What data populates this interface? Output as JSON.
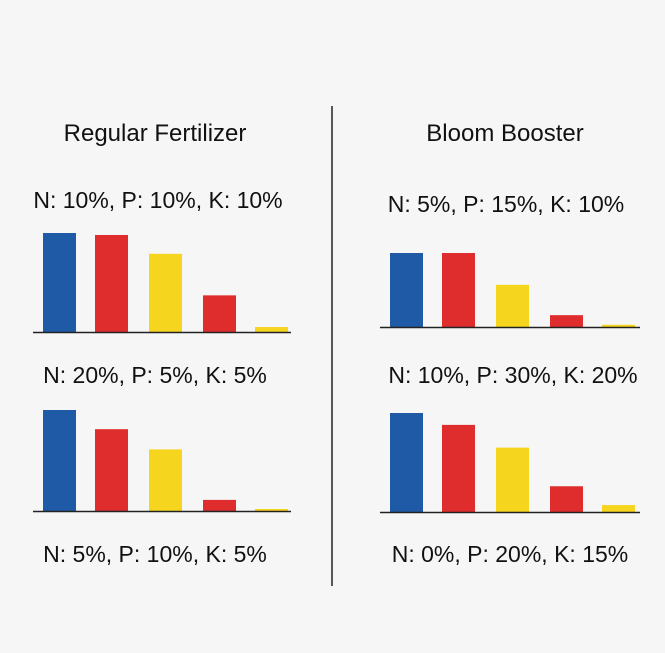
{
  "colors": {
    "background": "#f6f6f6",
    "bar_colors": [
      "#1f5aa6",
      "#df2c2c",
      "#f6d51f",
      "#df2c2c",
      "#f6d51f"
    ],
    "axis": "#222222",
    "divider": "#222222"
  },
  "chart_data": [
    {
      "type": "bar",
      "title": "Regular Fertilizer",
      "label_above": "N: 10%, P: 10%, K: 10%",
      "categories": [
        "",
        "",
        "",
        "",
        ""
      ],
      "values": [
        100,
        98,
        79,
        37,
        5
      ],
      "ylim": [
        0,
        100
      ],
      "grid": false,
      "legend": "none"
    },
    {
      "type": "bar",
      "title": "",
      "label_above": "N: 20%, P: 5%, K: 5%",
      "label_below": "N: 5%, P: 10%, K: 5%",
      "categories": [
        "",
        "",
        "",
        "",
        ""
      ],
      "values": [
        100,
        81,
        61,
        11,
        2
      ],
      "ylim": [
        0,
        100
      ],
      "grid": false,
      "legend": "none"
    },
    {
      "type": "bar",
      "title": "Bloom Booster",
      "label_above": "N: 5%, P: 15%, K: 10%",
      "categories": [
        "",
        "",
        "",
        "",
        ""
      ],
      "values": [
        100,
        100,
        57,
        16,
        3
      ],
      "ylim": [
        0,
        100
      ],
      "grid": false,
      "legend": "none"
    },
    {
      "type": "bar",
      "title": "",
      "label_above": "N: 10%, P: 30%, K: 20%",
      "label_below": "N: 0%, P: 20%, K: 15%",
      "categories": [
        "",
        "",
        "",
        "",
        ""
      ],
      "values": [
        100,
        88,
        65,
        26,
        7
      ],
      "ylim": [
        0,
        100
      ],
      "grid": false,
      "legend": "none"
    }
  ]
}
